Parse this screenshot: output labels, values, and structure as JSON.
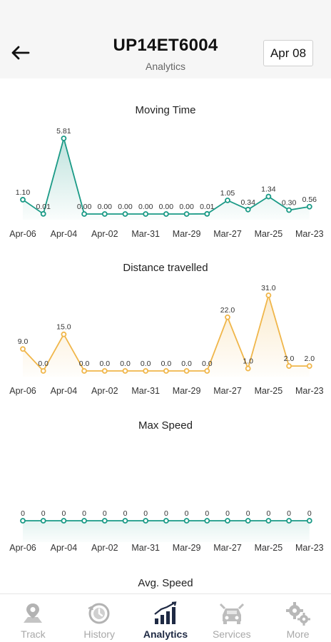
{
  "header": {
    "title": "UP14ET6004",
    "subtitle": "Analytics",
    "date": "Apr 08"
  },
  "icons": {
    "back": "arrow-left-icon",
    "track": "map-pin-icon",
    "history": "history-clock-icon",
    "analytics": "bar-chart-icon",
    "services": "car-service-icon",
    "more": "gears-icon"
  },
  "colors": {
    "teal": "#1a9a86",
    "orange": "#f0b64a",
    "active_nav": "#1f2a44",
    "inactive_nav": "#a8a8a8"
  },
  "chart_data": [
    {
      "type": "area",
      "title": "Moving Time",
      "x": [
        "Apr-06",
        "Apr-05",
        "Apr-04",
        "Apr-03",
        "Apr-02",
        "Apr-01",
        "Mar-31",
        "Mar-30",
        "Mar-29",
        "Mar-28",
        "Mar-27",
        "Mar-26",
        "Mar-25",
        "Mar-24",
        "Mar-23"
      ],
      "tick_labels": [
        "Apr-06",
        "Apr-04",
        "Apr-02",
        "Mar-31",
        "Mar-29",
        "Mar-27",
        "Mar-25",
        "Mar-23"
      ],
      "values": [
        1.1,
        0.01,
        5.81,
        0.0,
        0.0,
        0.0,
        0.0,
        0.0,
        0.0,
        0.01,
        1.05,
        0.34,
        1.34,
        0.3,
        0.56
      ],
      "labels": [
        "1.10",
        "0.01",
        "5.81",
        "0.00",
        "0.00",
        "0.00",
        "0.00",
        "0.00",
        "0.00",
        "0.01",
        "1.05",
        "0.34",
        "1.34",
        "0.30",
        "0.56"
      ],
      "color": "#1a9a86",
      "grid": false
    },
    {
      "type": "area",
      "title": "Distance travelled",
      "x": [
        "Apr-06",
        "Apr-05",
        "Apr-04",
        "Apr-03",
        "Apr-02",
        "Apr-01",
        "Mar-31",
        "Mar-30",
        "Mar-29",
        "Mar-28",
        "Mar-27",
        "Mar-26",
        "Mar-25",
        "Mar-24",
        "Mar-23"
      ],
      "tick_labels": [
        "Apr-06",
        "Apr-04",
        "Apr-02",
        "Mar-31",
        "Mar-29",
        "Mar-27",
        "Mar-25",
        "Mar-23"
      ],
      "values": [
        9.0,
        0.0,
        15.0,
        0.0,
        0.0,
        0.0,
        0.0,
        0.0,
        0.0,
        0.0,
        22.0,
        1.0,
        31.0,
        2.0,
        2.0
      ],
      "labels": [
        "9.0",
        "0.0",
        "15.0",
        "0.0",
        "0.0",
        "0.0",
        "0.0",
        "0.0",
        "0.0",
        "0.0",
        "22.0",
        "1.0",
        "31.0",
        "2.0",
        "2.0"
      ],
      "color": "#f0b64a",
      "grid": false
    },
    {
      "type": "area",
      "title": "Max Speed",
      "x": [
        "Apr-06",
        "Apr-05",
        "Apr-04",
        "Apr-03",
        "Apr-02",
        "Apr-01",
        "Mar-31",
        "Mar-30",
        "Mar-29",
        "Mar-28",
        "Mar-27",
        "Mar-26",
        "Mar-25",
        "Mar-24",
        "Mar-23"
      ],
      "tick_labels": [
        "Apr-06",
        "Apr-04",
        "Apr-02",
        "Mar-31",
        "Mar-29",
        "Mar-27",
        "Mar-25",
        "Mar-23"
      ],
      "values": [
        0,
        0,
        0,
        0,
        0,
        0,
        0,
        0,
        0,
        0,
        0,
        0,
        0,
        0,
        0
      ],
      "labels": [
        "0",
        "0",
        "0",
        "0",
        "0",
        "0",
        "0",
        "0",
        "0",
        "0",
        "0",
        "0",
        "0",
        "0",
        "0"
      ],
      "color": "#1a9a86",
      "grid": false
    },
    {
      "type": "area",
      "title": "Avg. Speed"
    }
  ],
  "nav": {
    "items": [
      {
        "label": "Track",
        "active": false
      },
      {
        "label": "History",
        "active": false
      },
      {
        "label": "Analytics",
        "active": true
      },
      {
        "label": "Services",
        "active": false
      },
      {
        "label": "More",
        "active": false
      }
    ]
  }
}
